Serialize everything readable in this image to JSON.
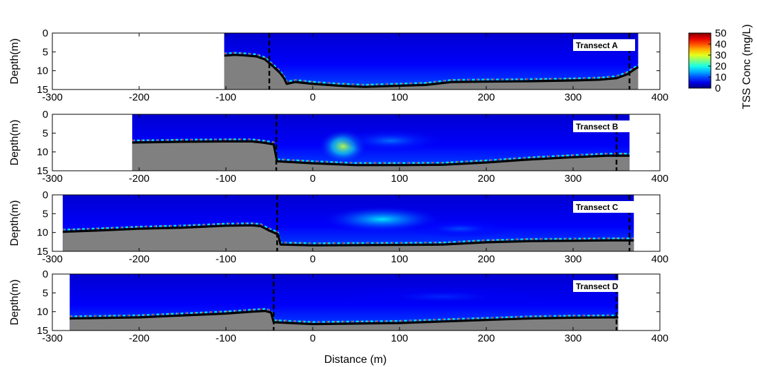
{
  "chart_data": [
    {
      "type": "heatmap",
      "label": "Transect A",
      "xlim": [
        -300,
        400
      ],
      "ylim": [
        15,
        0
      ],
      "xticks": [
        -300,
        -200,
        -100,
        0,
        100,
        200,
        300,
        400
      ],
      "yticks": [
        0,
        5,
        10,
        15
      ],
      "ylabel": "Depth(m)",
      "xlabel": "",
      "data_x_range": [
        -102,
        375
      ],
      "boundary_lines_x": [
        -50,
        365
      ],
      "bottom_profile": [
        [
          -102,
          6
        ],
        [
          -90,
          5.8
        ],
        [
          -80,
          5.9
        ],
        [
          -65,
          6.2
        ],
        [
          -55,
          7
        ],
        [
          -45,
          9
        ],
        [
          -38,
          10.5
        ],
        [
          -33,
          12
        ],
        [
          -30,
          13.5
        ],
        [
          -20,
          13
        ],
        [
          0,
          13.5
        ],
        [
          30,
          14
        ],
        [
          60,
          14.3
        ],
        [
          100,
          14
        ],
        [
          130,
          13.8
        ],
        [
          160,
          13
        ],
        [
          200,
          12.9
        ],
        [
          250,
          12.8
        ],
        [
          300,
          12.6
        ],
        [
          330,
          12.4
        ],
        [
          350,
          12
        ],
        [
          362,
          11
        ],
        [
          375,
          9
        ]
      ],
      "plume": []
    },
    {
      "type": "heatmap",
      "label": "Transect B",
      "xlim": [
        -300,
        400
      ],
      "ylim": [
        15,
        0
      ],
      "xticks": [
        -300,
        -200,
        -100,
        0,
        100,
        200,
        300,
        400
      ],
      "yticks": [
        0,
        5,
        10,
        15
      ],
      "ylabel": "Depth(m)",
      "xlabel": "",
      "data_x_range": [
        -208,
        365
      ],
      "boundary_lines_x": [
        -42,
        350
      ],
      "bottom_profile": [
        [
          -208,
          7.5
        ],
        [
          -150,
          7.3
        ],
        [
          -100,
          7.2
        ],
        [
          -70,
          7.2
        ],
        [
          -55,
          7.6
        ],
        [
          -45,
          8
        ],
        [
          -41,
          12.5
        ],
        [
          0,
          13
        ],
        [
          50,
          13.5
        ],
        [
          100,
          13.5
        ],
        [
          150,
          13.4
        ],
        [
          200,
          12.8
        ],
        [
          250,
          12
        ],
        [
          300,
          11.4
        ],
        [
          340,
          11
        ],
        [
          365,
          11
        ]
      ],
      "plume": [
        {
          "x": 35,
          "y": 8.5,
          "rx": 28,
          "ry": 4.5,
          "peak": 28
        },
        {
          "x": 90,
          "y": 7,
          "rx": 60,
          "ry": 3,
          "peak": 12
        }
      ]
    },
    {
      "type": "heatmap",
      "label": "Transect C",
      "xlim": [
        -300,
        400
      ],
      "ylim": [
        15,
        0
      ],
      "xticks": [
        -300,
        -200,
        -100,
        0,
        100,
        200,
        300,
        400
      ],
      "yticks": [
        0,
        5,
        10,
        15
      ],
      "ylabel": "Depth(m)",
      "xlabel": "",
      "data_x_range": [
        -288,
        370
      ],
      "boundary_lines_x": [
        -41,
        365
      ],
      "bottom_profile": [
        [
          -288,
          9.8
        ],
        [
          -250,
          9.5
        ],
        [
          -200,
          9
        ],
        [
          -150,
          8.7
        ],
        [
          -100,
          8.2
        ],
        [
          -70,
          8.1
        ],
        [
          -60,
          8.3
        ],
        [
          -50,
          9.5
        ],
        [
          -40,
          10.5
        ],
        [
          -37,
          13.2
        ],
        [
          0,
          13.4
        ],
        [
          100,
          13.3
        ],
        [
          150,
          13.2
        ],
        [
          200,
          12.6
        ],
        [
          250,
          12.3
        ],
        [
          300,
          12.2
        ],
        [
          340,
          12.1
        ],
        [
          370,
          12.1
        ]
      ],
      "plume": [
        {
          "x": 80,
          "y": 6.5,
          "rx": 70,
          "ry": 3.5,
          "peak": 18
        },
        {
          "x": 170,
          "y": 9,
          "rx": 60,
          "ry": 2.5,
          "peak": 10
        }
      ]
    },
    {
      "type": "heatmap",
      "label": "Transect D",
      "xlim": [
        -300,
        400
      ],
      "ylim": [
        15,
        0
      ],
      "xticks": [
        -300,
        -200,
        -100,
        0,
        100,
        200,
        300,
        400
      ],
      "yticks": [
        0,
        5,
        10,
        15
      ],
      "ylabel": "Depth(m)",
      "xlabel": "Distance (m)",
      "data_x_range": [
        -280,
        352
      ],
      "boundary_lines_x": [
        -45,
        350
      ],
      "bottom_profile": [
        [
          -280,
          11.8
        ],
        [
          -200,
          11.5
        ],
        [
          -150,
          11
        ],
        [
          -100,
          10.5
        ],
        [
          -70,
          10
        ],
        [
          -55,
          9.8
        ],
        [
          -48,
          10.2
        ],
        [
          -45,
          12.8
        ],
        [
          0,
          13.3
        ],
        [
          100,
          13
        ],
        [
          200,
          12.2
        ],
        [
          250,
          11.8
        ],
        [
          300,
          11.6
        ],
        [
          352,
          11.5
        ]
      ],
      "plume": [
        {
          "x": 150,
          "y": 6,
          "rx": 120,
          "ry": 3,
          "peak": 8
        }
      ]
    }
  ],
  "colorbar": {
    "label": "TSS Conc (mg/L)",
    "ticks": [
      0,
      10,
      20,
      30,
      40,
      50
    ],
    "range": [
      0,
      50
    ],
    "colormap": "jet"
  },
  "colors": {
    "background_water": "#0010b8",
    "seabed": "#808080",
    "bottom_line": "#000000"
  }
}
